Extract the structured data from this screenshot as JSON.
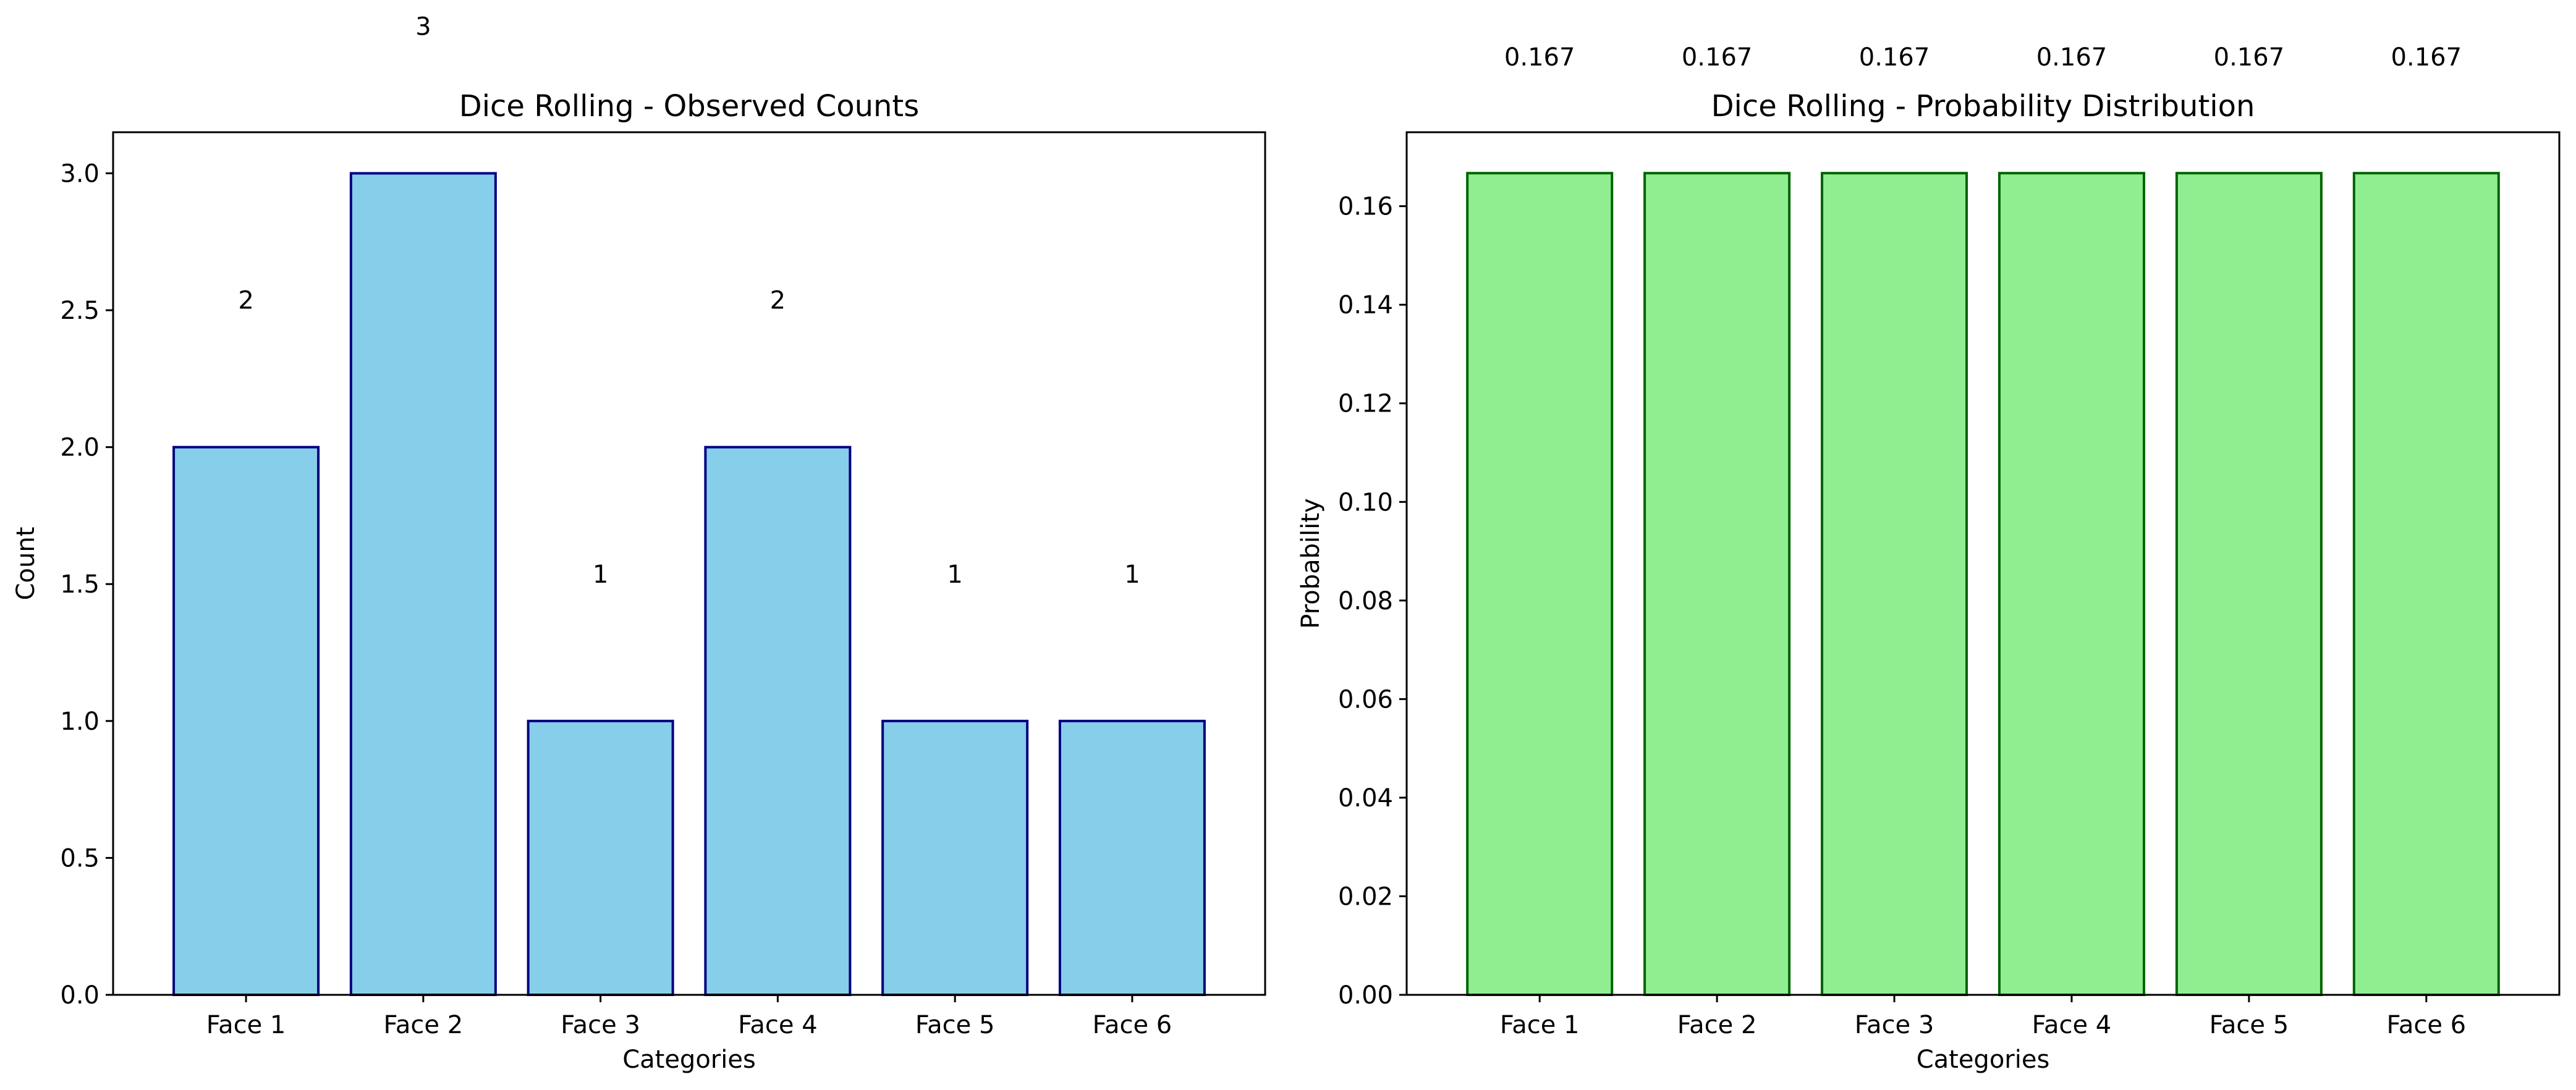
{
  "chart_data": [
    {
      "type": "bar",
      "title": "Dice Rolling - Observed Counts",
      "xlabel": "Categories",
      "ylabel": "Count",
      "categories": [
        "Face 1",
        "Face 2",
        "Face 3",
        "Face 4",
        "Face 5",
        "Face 6"
      ],
      "values": [
        2,
        3,
        1,
        2,
        1,
        1
      ],
      "value_labels": [
        "2",
        "3",
        "1",
        "2",
        "1",
        "1"
      ],
      "ylim": [
        0,
        3.15
      ],
      "yticks": [
        0,
        0.5,
        1,
        1.5,
        2,
        2.5,
        3
      ],
      "ytick_labels": [
        "0.0",
        "0.5",
        "1.0",
        "1.5",
        "2.0",
        "2.5",
        "3.0"
      ],
      "grid": false,
      "legend": "none",
      "bar_color": "#87ceeb",
      "edge_color": "#000080"
    },
    {
      "type": "bar",
      "title": "Dice Rolling - Probability Distribution",
      "xlabel": "Categories",
      "ylabel": "Probability",
      "categories": [
        "Face 1",
        "Face 2",
        "Face 3",
        "Face 4",
        "Face 5",
        "Face 6"
      ],
      "values": [
        0.1667,
        0.1667,
        0.1667,
        0.1667,
        0.1667,
        0.1667
      ],
      "value_labels": [
        "0.167",
        "0.167",
        "0.167",
        "0.167",
        "0.167",
        "0.167"
      ],
      "ylim": [
        0,
        0.175
      ],
      "yticks": [
        0,
        0.02,
        0.04,
        0.06,
        0.08,
        0.1,
        0.12,
        0.14,
        0.16
      ],
      "ytick_labels": [
        "0.00",
        "0.02",
        "0.04",
        "0.06",
        "0.08",
        "0.10",
        "0.12",
        "0.14",
        "0.16"
      ],
      "grid": false,
      "legend": "none",
      "bar_color": "#90ee90",
      "edge_color": "#006400"
    }
  ]
}
